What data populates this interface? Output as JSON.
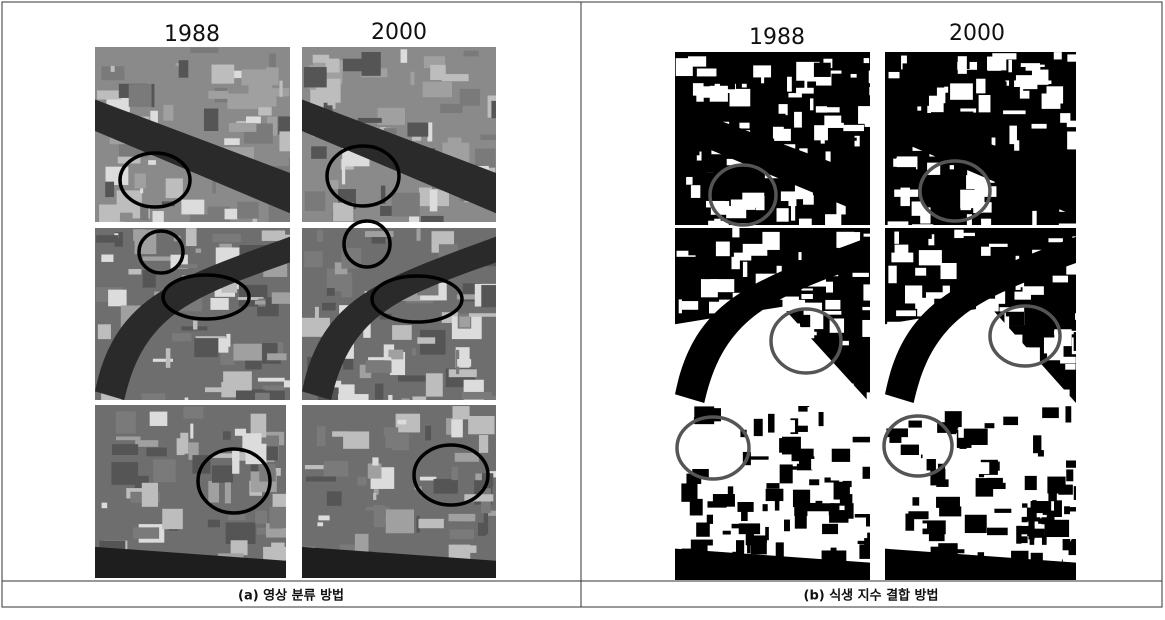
{
  "panels": [
    {
      "years": [
        "1988",
        "2000"
      ],
      "caption": "(a) 영상 분류 방법"
    },
    {
      "years": [
        "1988",
        "2000"
      ],
      "caption": "(b) 식생 지수 결합 방법"
    }
  ]
}
